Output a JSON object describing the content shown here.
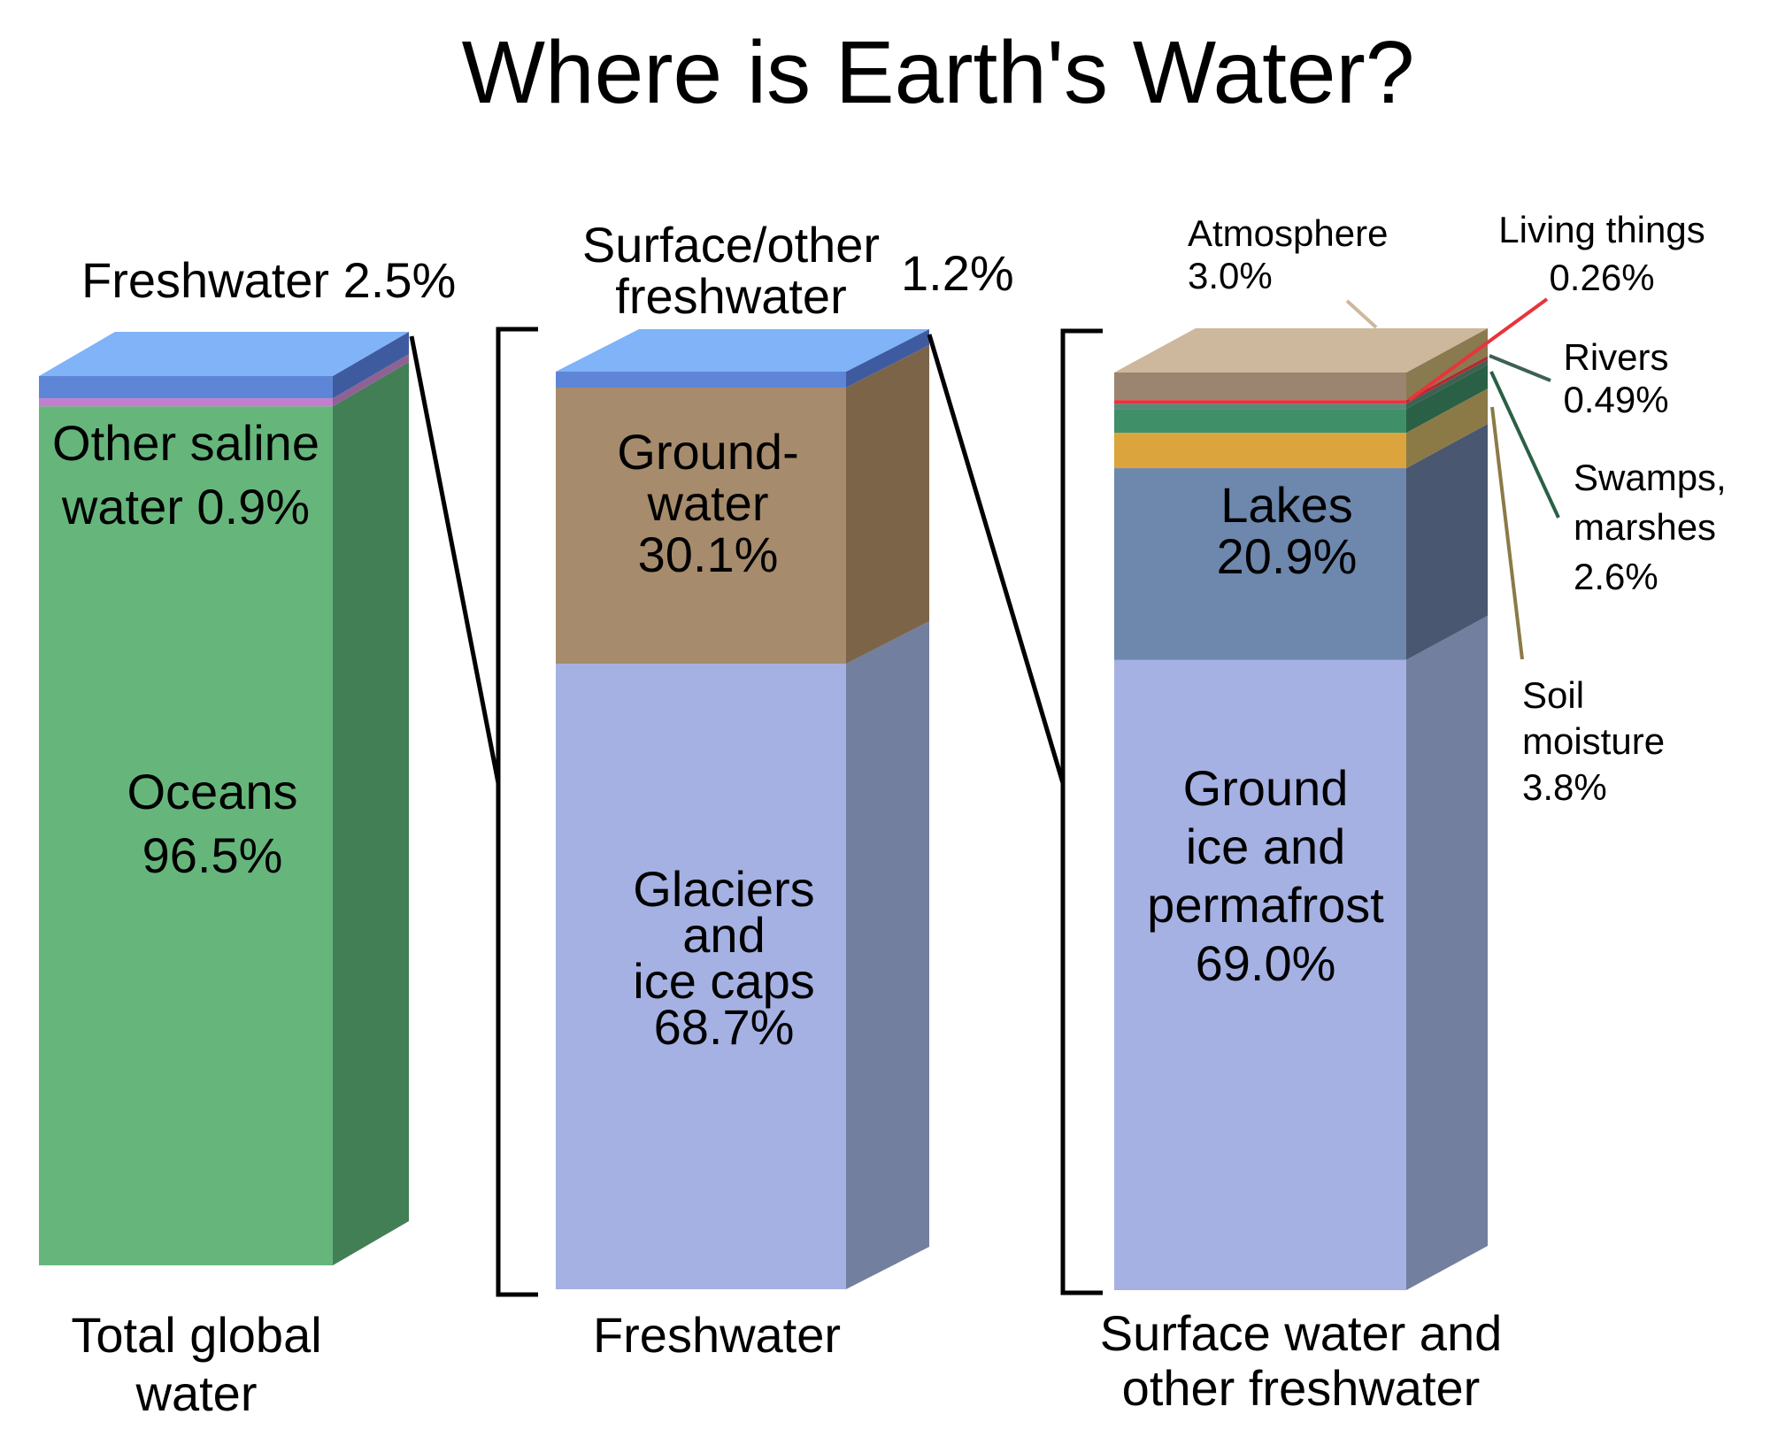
{
  "chart_data": [
    {
      "type": "stacked-bar-3d",
      "title": "Where is Earth's Water?",
      "bar_label": [
        "Total global",
        "water"
      ],
      "segments": [
        {
          "name": [
            "Oceans",
            "96.5%"
          ],
          "value": 96.5,
          "color": "#66b67c",
          "side_color": "#437f55"
        },
        {
          "name": [
            "Other saline",
            "water 0.9%"
          ],
          "value": 0.9,
          "color": "#c17fcd",
          "side_color": "#8e6294"
        },
        {
          "name": [
            "Freshwater 2.5%"
          ],
          "value": 2.5,
          "color": "#5f86d6",
          "side_color": "#3f5ba0",
          "top_color": "#80b3f7"
        }
      ]
    },
    {
      "type": "stacked-bar-3d",
      "bar_label": [
        "Freshwater"
      ],
      "segments": [
        {
          "name": [
            "Glaciers",
            "and",
            "ice caps",
            "68.7%"
          ],
          "value": 68.7,
          "color": "#a4b1e2",
          "side_color": "#737f9e"
        },
        {
          "name": [
            "Ground-",
            "water",
            "30.1%"
          ],
          "value": 30.1,
          "color": "#a68b6c",
          "side_color": "#7c6449"
        },
        {
          "name": [
            "Surface/other",
            "freshwater"
          ],
          "value_label": "1.2%",
          "value": 1.2,
          "color": "#5f86d6",
          "side_color": "#3f5ba0",
          "top_color": "#80b3f7"
        }
      ]
    },
    {
      "type": "stacked-bar-3d",
      "bar_label": [
        "Surface water and",
        "other freshwater"
      ],
      "segments": [
        {
          "name": [
            "Ground",
            "ice and",
            "permafrost",
            "69.0%"
          ],
          "value": 69.0,
          "color": "#a4b1e2",
          "side_color": "#737f9e"
        },
        {
          "name": [
            "Lakes",
            "20.9%"
          ],
          "value": 20.9,
          "color": "#6d87ad",
          "side_color": "#495770"
        },
        {
          "name": [
            "Soil",
            "moisture",
            "3.8%"
          ],
          "value": 3.8,
          "color": "#dba43c",
          "side_color": "#8b7a46"
        },
        {
          "name": [
            "Swamps,",
            "marshes",
            "2.6%"
          ],
          "value": 2.6,
          "color": "#3f8f68",
          "side_color": "#2a6045"
        },
        {
          "name": [
            "Rivers",
            "0.49%"
          ],
          "value": 0.49,
          "color": "#5a8a77",
          "side_color": "#3d6152"
        },
        {
          "name": [
            "Living things",
            "0.26%"
          ],
          "value": 0.26,
          "color": "#e8343c",
          "side_color": "#b22a30"
        },
        {
          "name": [
            "Atmosphere",
            "3.0%"
          ],
          "value": 3.0,
          "color": "#9b8470",
          "side_color": "#8a7a50",
          "top_color": "#cdb79d"
        }
      ]
    }
  ]
}
